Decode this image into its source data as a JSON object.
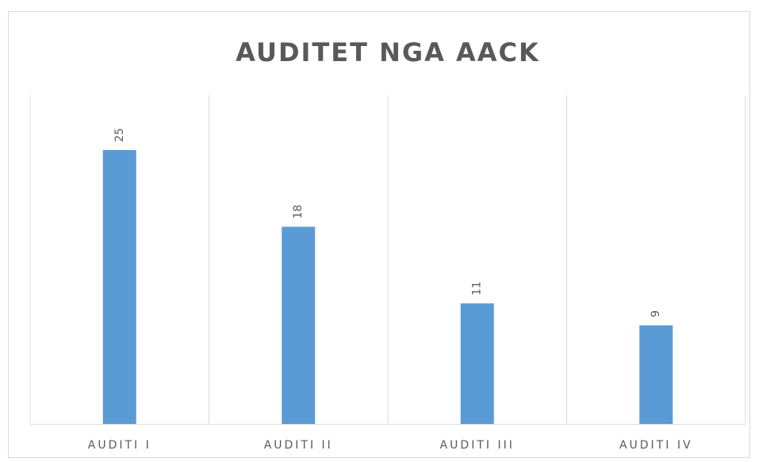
{
  "chart_data": {
    "type": "bar",
    "title": "AUDITET NGA AACK",
    "categories": [
      "AUDITI I",
      "AUDITI II",
      "AUDITI III",
      "AUDITI IV"
    ],
    "values": [
      25,
      18,
      11,
      9
    ],
    "color": "#5b9bd5",
    "ylim": [
      0,
      30
    ]
  }
}
